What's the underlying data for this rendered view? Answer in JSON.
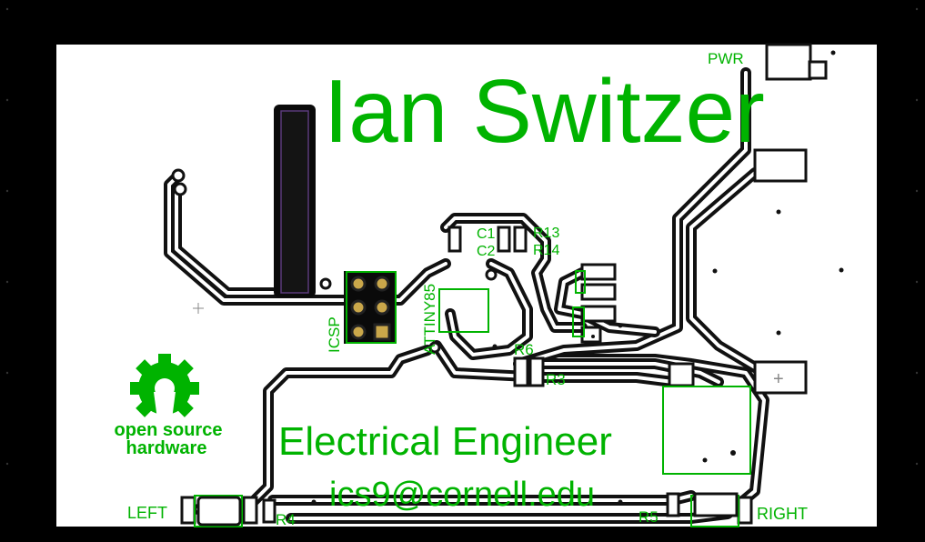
{
  "board": {
    "name": "Ian Switzer",
    "title": "Electrical Engineer",
    "email": "ics9@cornell.edu"
  },
  "oshw": {
    "line1": "open source",
    "line2": "hardware"
  },
  "labels": {
    "pwr": "PWR",
    "left": "LEFT",
    "right": "RIGHT",
    "icsp": "ICSP",
    "attiny": "ATTINY85",
    "c1": "C1",
    "c2": "C2",
    "r13": "R13",
    "r14": "R14",
    "r6": "R6",
    "r3": "R3",
    "r4": "R4",
    "r5": "R5",
    "plus": "+"
  },
  "colors": {
    "silkscreen": "#00b300",
    "board": "#ffffff",
    "background": "#000000",
    "copper": "#111111"
  }
}
